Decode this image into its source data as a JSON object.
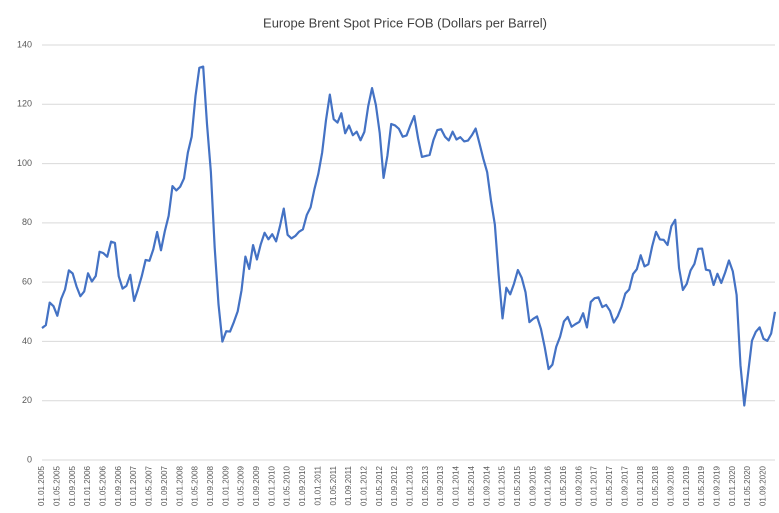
{
  "chart_data": {
    "type": "line",
    "title": "Europe Brent Spot Price FOB (Dollars per Barrel)",
    "categories": [
      "01.01.2005",
      null,
      null,
      null,
      "01.05.2005",
      null,
      null,
      null,
      "01.09.2005",
      null,
      null,
      null,
      "01.01.2006",
      null,
      null,
      null,
      "01.05.2006",
      null,
      null,
      null,
      "01.09.2006",
      null,
      null,
      null,
      "01.01.2007",
      null,
      null,
      null,
      "01.05.2007",
      null,
      null,
      null,
      "01.09.2007",
      null,
      null,
      null,
      "01.01.2008",
      null,
      null,
      null,
      "01.05.2008",
      null,
      null,
      null,
      "01.09.2008",
      null,
      null,
      null,
      "01.01.2009",
      null,
      null,
      null,
      "01.05.2009",
      null,
      null,
      null,
      "01.09.2009",
      null,
      null,
      null,
      "01.01.2010",
      null,
      null,
      null,
      "01.05.2010",
      null,
      null,
      null,
      "01.09.2010",
      null,
      null,
      null,
      "01.01.2011",
      null,
      null,
      null,
      "01.05.2011",
      null,
      null,
      null,
      "01.09.2011",
      null,
      null,
      null,
      "01.01.2012",
      null,
      null,
      null,
      "01.05.2012",
      null,
      null,
      null,
      "01.09.2012",
      null,
      null,
      null,
      "01.01.2013",
      null,
      null,
      null,
      "01.05.2013",
      null,
      null,
      null,
      "01.09.2013",
      null,
      null,
      null,
      "01.01.2014",
      null,
      null,
      null,
      "01.05.2014",
      null,
      null,
      null,
      "01.09.2014",
      null,
      null,
      null,
      "01.01.2015",
      null,
      null,
      null,
      "01.05.2015",
      null,
      null,
      null,
      "01.09.2015",
      null,
      null,
      null,
      "01.01.2016",
      null,
      null,
      null,
      "01.05.2016",
      null,
      null,
      null,
      "01.09.2016",
      null,
      null,
      null,
      "01.01.2017",
      null,
      null,
      null,
      "01.05.2017",
      null,
      null,
      null,
      "01.09.2017",
      null,
      null,
      null,
      "01.01.2018",
      null,
      null,
      null,
      "01.05.2018",
      null,
      null,
      null,
      "01.09.2018",
      null,
      null,
      null,
      "01.01.2019",
      null,
      null,
      null,
      "01.05.2019",
      null,
      null,
      null,
      "01.09.2019",
      null,
      null,
      null,
      "01.01.2020",
      null,
      null,
      null,
      "01.05.2020",
      null,
      null,
      null,
      "01.09.2020",
      null,
      null,
      null
    ],
    "values": [
      44.51,
      45.48,
      53.1,
      51.88,
      48.65,
      54.35,
      57.52,
      63.98,
      62.91,
      58.54,
      55.24,
      56.86,
      62.99,
      60.21,
      62.06,
      70.26,
      69.78,
      68.56,
      73.67,
      73.23,
      61.96,
      57.81,
      58.76,
      62.47,
      53.68,
      57.56,
      62.05,
      67.49,
      67.21,
      71.05,
      76.93,
      70.76,
      77.17,
      82.34,
      92.41,
      90.93,
      92.18,
      94.99,
      103.64,
      109.07,
      122.8,
      132.32,
      132.72,
      113.24,
      97.23,
      71.58,
      52.45,
      39.95,
      43.44,
      43.32,
      46.54,
      50.18,
      57.3,
      68.61,
      64.44,
      72.51,
      67.65,
      72.77,
      76.66,
      74.46,
      76.17,
      73.75,
      78.83,
      84.82,
      75.95,
      74.76,
      75.58,
      77.04,
      77.84,
      82.67,
      85.28,
      91.45,
      96.52,
      103.72,
      114.64,
      123.26,
      114.99,
      113.83,
      116.97,
      110.22,
      112.83,
      109.55,
      110.77,
      107.87,
      110.69,
      119.33,
      125.45,
      119.75,
      110.34,
      95.16,
      102.62,
      113.36,
      112.86,
      111.71,
      109.06,
      109.49,
      112.96,
      116.05,
      108.47,
      102.25,
      102.56,
      102.92,
      107.93,
      111.28,
      111.6,
      109.08,
      107.79,
      110.76,
      108.12,
      108.9,
      107.48,
      107.76,
      109.54,
      111.8,
      106.77,
      101.61,
      97.09,
      87.43,
      79.44,
      62.34,
      47.76,
      58.1,
      55.89,
      59.52,
      64.08,
      61.48,
      56.56,
      46.52,
      47.62,
      48.43,
      44.27,
      38.01,
      30.7,
      32.18,
      38.21,
      41.58,
      46.74,
      48.25,
      44.95,
      45.84,
      46.57,
      49.52,
      44.73,
      53.31,
      54.58,
      54.87,
      51.59,
      52.31,
      50.33,
      46.37,
      48.48,
      51.7,
      56.15,
      57.51,
      62.71,
      64.37,
      69.08,
      65.32,
      66.02,
      72.11,
      76.98,
      74.41,
      74.25,
      72.53,
      78.89,
      81.03,
      64.75,
      57.36,
      59.41,
      63.96,
      66.14,
      71.23,
      71.32,
      64.22,
      63.92,
      59.04,
      62.83,
      59.71,
      63.21,
      67.31,
      63.65,
      55.66,
      32.01,
      18.38,
      29.38,
      40.27,
      43.24,
      44.74,
      40.91,
      40.19,
      42.69,
      49.99
    ],
    "color": "#4472c4",
    "ylim": [
      0,
      140
    ],
    "yticks": [
      0,
      20,
      40,
      60,
      80,
      100,
      120,
      140
    ],
    "grid": true
  }
}
